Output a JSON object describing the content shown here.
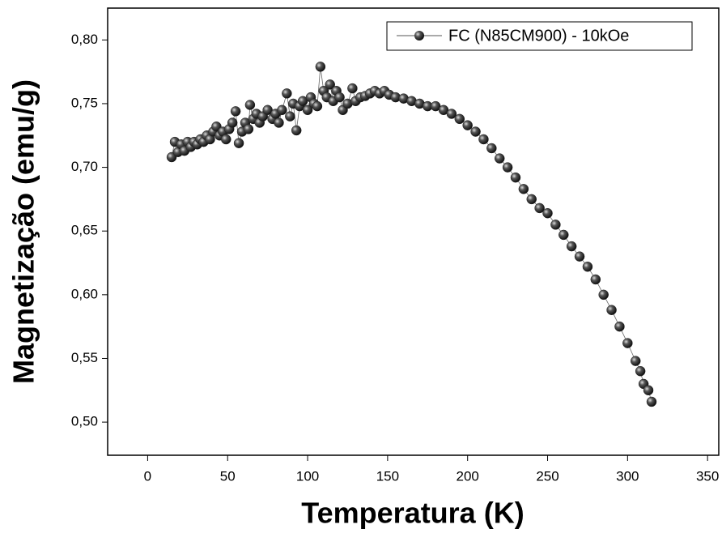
{
  "chart_data": {
    "type": "line",
    "x_label": "Temperatura (K)",
    "y_label": "Magnetização (emu/g)",
    "x": [
      15,
      17,
      19,
      21,
      23,
      25,
      27,
      29,
      31,
      33,
      35,
      37,
      39,
      41,
      43,
      45,
      47,
      49,
      51,
      53,
      55,
      57,
      59,
      61,
      63,
      64,
      66,
      68,
      70,
      72,
      75,
      78,
      80,
      82,
      84,
      87,
      89,
      91,
      93,
      95,
      97,
      100,
      102,
      104,
      106,
      108,
      110,
      112,
      114,
      116,
      118,
      120,
      122,
      125,
      128,
      130,
      133,
      136,
      139,
      142,
      145,
      148,
      151,
      155,
      160,
      165,
      170,
      175,
      180,
      185,
      190,
      195,
      200,
      205,
      210,
      215,
      220,
      225,
      230,
      235,
      240,
      245,
      250,
      255,
      260,
      265,
      270,
      275,
      280,
      285,
      290,
      295,
      300,
      305,
      308,
      310,
      313,
      315
    ],
    "series": [
      {
        "name": "FC (N85CM900) - 10kOe",
        "color": "#222222",
        "values": [
          0.708,
          0.72,
          0.712,
          0.718,
          0.713,
          0.72,
          0.716,
          0.72,
          0.718,
          0.722,
          0.72,
          0.725,
          0.722,
          0.728,
          0.732,
          0.725,
          0.728,
          0.722,
          0.73,
          0.735,
          0.744,
          0.719,
          0.728,
          0.735,
          0.73,
          0.749,
          0.738,
          0.742,
          0.735,
          0.74,
          0.745,
          0.738,
          0.742,
          0.735,
          0.745,
          0.758,
          0.74,
          0.75,
          0.729,
          0.748,
          0.752,
          0.745,
          0.755,
          0.75,
          0.748,
          0.779,
          0.76,
          0.755,
          0.765,
          0.752,
          0.76,
          0.755,
          0.745,
          0.75,
          0.762,
          0.752,
          0.755,
          0.756,
          0.758,
          0.76,
          0.758,
          0.76,
          0.757,
          0.755,
          0.754,
          0.752,
          0.75,
          0.748,
          0.748,
          0.745,
          0.742,
          0.738,
          0.733,
          0.728,
          0.722,
          0.715,
          0.707,
          0.7,
          0.692,
          0.683,
          0.675,
          0.668,
          0.664,
          0.655,
          0.647,
          0.638,
          0.63,
          0.622,
          0.612,
          0.6,
          0.588,
          0.575,
          0.562,
          0.548,
          0.54,
          0.53,
          0.525,
          0.516
        ]
      }
    ],
    "xlim": [
      -25,
      357
    ],
    "ylim": [
      0.474,
      0.825
    ],
    "xticks": [
      0,
      50,
      100,
      150,
      200,
      250,
      300,
      350
    ],
    "yticks": [
      {
        "value": 0.5,
        "label": "0,50"
      },
      {
        "value": 0.55,
        "label": "0,55"
      },
      {
        "value": 0.6,
        "label": "0,60"
      },
      {
        "value": 0.65,
        "label": "0,65"
      },
      {
        "value": 0.7,
        "label": "0,70"
      },
      {
        "value": 0.75,
        "label": "0,75"
      },
      {
        "value": 0.8,
        "label": "0,80"
      }
    ],
    "legend": "top-right"
  }
}
